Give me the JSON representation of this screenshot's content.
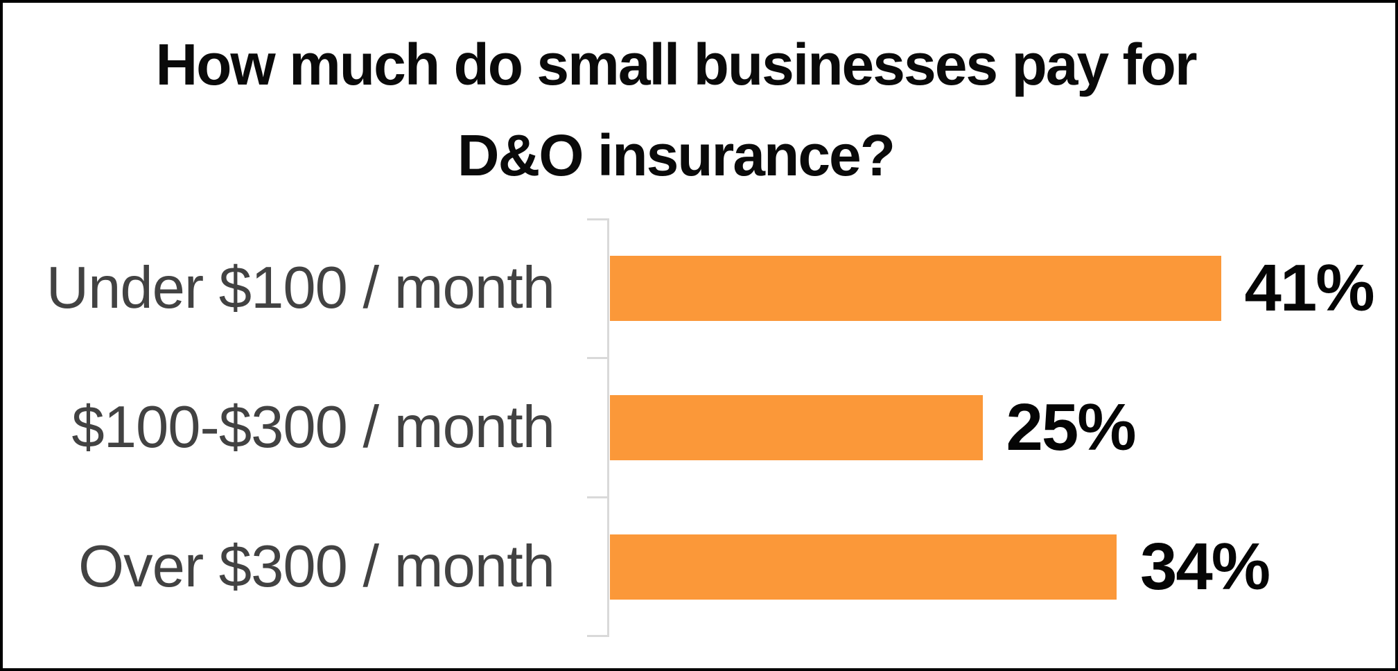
{
  "chart_data": {
    "type": "bar",
    "orientation": "horizontal",
    "title": "How much do small businesses pay for D&O insurance?",
    "title_lines": [
      "How much do small businesses pay for",
      "D&O insurance?"
    ],
    "categories": [
      "Under $100 / month",
      "$100-$300 / month",
      "Over $300 / month"
    ],
    "values": [
      41,
      25,
      34
    ],
    "data_labels": [
      "41%",
      "25%",
      "34%"
    ],
    "unit": "%",
    "xlim": [
      0,
      48.8
    ],
    "grid": false,
    "legend": "none",
    "axis": "left-category-axis-with-ticks"
  },
  "colors": {
    "bar_orange": "#FB9839",
    "label_gray": "#424242",
    "title_black": "#0A0A0A",
    "value_black": "#050505",
    "axis_gray": "#D9D9D9",
    "border_black": "#000000",
    "background": "#FFFFFF"
  }
}
